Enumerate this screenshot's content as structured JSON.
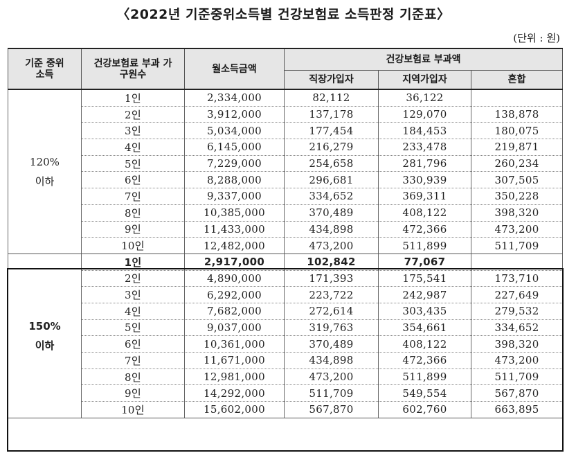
{
  "title": "〈2022년 기준중위소득별 건강보험료 소득판정 기준표〉",
  "unit": "(단위 : 원)",
  "headers": {
    "median": "기준 중위소득",
    "household": "건강보험료 부과 가구원수",
    "income": "월소득금액",
    "premium_group": "건강보험료 부과액",
    "workplace": "직장가입자",
    "regional": "지역가입자",
    "mixed": "혼합"
  },
  "groups": [
    {
      "label": "120% 이하",
      "rows": [
        {
          "size": "1인",
          "income": "2,334,000",
          "workplace": "82,112",
          "regional": "36,122",
          "mixed": ""
        },
        {
          "size": "2인",
          "income": "3,912,000",
          "workplace": "137,178",
          "regional": "129,070",
          "mixed": "138,878"
        },
        {
          "size": "3인",
          "income": "5,034,000",
          "workplace": "177,454",
          "regional": "184,453",
          "mixed": "180,075"
        },
        {
          "size": "4인",
          "income": "6,145,000",
          "workplace": "216,279",
          "regional": "233,478",
          "mixed": "219,871"
        },
        {
          "size": "5인",
          "income": "7,229,000",
          "workplace": "254,658",
          "regional": "281,796",
          "mixed": "260,234"
        },
        {
          "size": "6인",
          "income": "8,288,000",
          "workplace": "296,681",
          "regional": "330,939",
          "mixed": "307,505"
        },
        {
          "size": "7인",
          "income": "9,337,000",
          "workplace": "334,652",
          "regional": "369,311",
          "mixed": "350,228"
        },
        {
          "size": "8인",
          "income": "10,385,000",
          "workplace": "370,489",
          "regional": "408,122",
          "mixed": "398,320"
        },
        {
          "size": "9인",
          "income": "11,433,000",
          "workplace": "434,898",
          "regional": "472,366",
          "mixed": "473,200"
        },
        {
          "size": "10인",
          "income": "12,482,000",
          "workplace": "473,200",
          "regional": "511,899",
          "mixed": "511,709"
        }
      ]
    },
    {
      "label": "150% 이하",
      "rows": [
        {
          "size": "1인",
          "income": "2,917,000",
          "workplace": "102,842",
          "regional": "77,067",
          "mixed": "",
          "bold": true
        },
        {
          "size": "2인",
          "income": "4,890,000",
          "workplace": "171,393",
          "regional": "175,541",
          "mixed": "173,710"
        },
        {
          "size": "3인",
          "income": "6,292,000",
          "workplace": "223,722",
          "regional": "242,987",
          "mixed": "227,649"
        },
        {
          "size": "4인",
          "income": "7,682,000",
          "workplace": "272,614",
          "regional": "303,435",
          "mixed": "279,532"
        },
        {
          "size": "5인",
          "income": "9,037,000",
          "workplace": "319,763",
          "regional": "354,661",
          "mixed": "334,652"
        },
        {
          "size": "6인",
          "income": "10,361,000",
          "workplace": "370,489",
          "regional": "408,122",
          "mixed": "398,320"
        },
        {
          "size": "7인",
          "income": "11,671,000",
          "workplace": "434,898",
          "regional": "472,366",
          "mixed": "473,200"
        },
        {
          "size": "8인",
          "income": "12,981,000",
          "workplace": "473,200",
          "regional": "511,899",
          "mixed": "511,709"
        },
        {
          "size": "9인",
          "income": "14,292,000",
          "workplace": "511,709",
          "regional": "549,554",
          "mixed": "567,870"
        },
        {
          "size": "10인",
          "income": "15,602,000",
          "workplace": "567,870",
          "regional": "602,760",
          "mixed": "663,895"
        }
      ]
    }
  ]
}
